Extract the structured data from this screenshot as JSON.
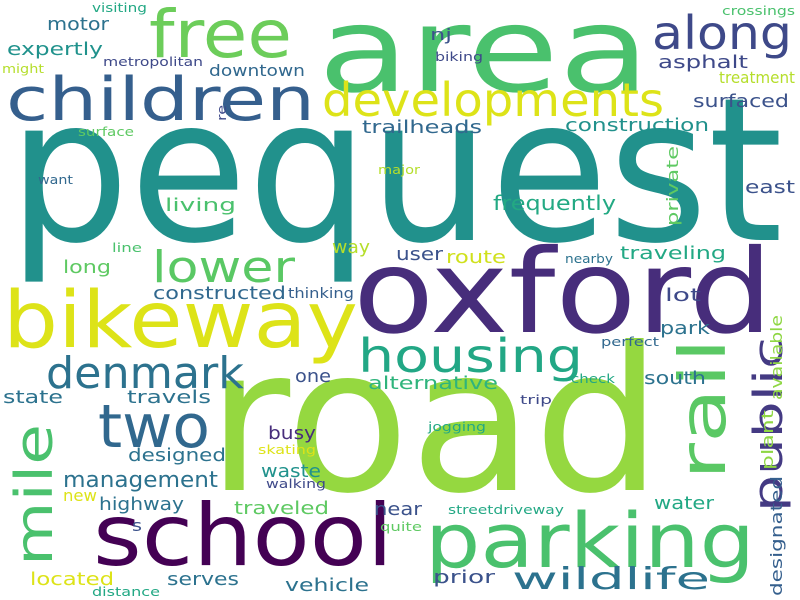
{
  "words": [
    {
      "text": "pequest",
      "color": "#21918c"
    },
    {
      "text": "road",
      "color": "#95d840"
    },
    {
      "text": "area",
      "color": "#4ac16d"
    },
    {
      "text": "oxford",
      "color": "#472d7b"
    },
    {
      "text": "school",
      "color": "#440154"
    },
    {
      "text": "bikeway",
      "color": "#dde318"
    },
    {
      "text": "parking",
      "color": "#4ac16d"
    },
    {
      "text": "children",
      "color": "#355f8d"
    },
    {
      "text": "free",
      "color": "#6ccd5a"
    },
    {
      "text": "developments",
      "color": "#dde318"
    },
    {
      "text": "along",
      "color": "#3e4989"
    },
    {
      "text": "housing",
      "color": "#22a785"
    },
    {
      "text": "rail",
      "color": "#5ac864"
    },
    {
      "text": "denmark",
      "color": "#2c728e"
    },
    {
      "text": "two",
      "color": "#31688e"
    },
    {
      "text": "mile",
      "color": "#4ac16d"
    },
    {
      "text": "lower",
      "color": "#5ac864"
    },
    {
      "text": "public",
      "color": "#443a83"
    },
    {
      "text": "wildlife",
      "color": "#2c728e"
    },
    {
      "text": "management",
      "color": "#2c728e"
    },
    {
      "text": "asphalt",
      "color": "#3e4989"
    },
    {
      "text": "surfaced",
      "color": "#3b528b"
    },
    {
      "text": "treatment",
      "color": "#b5de2b"
    },
    {
      "text": "construction",
      "color": "#21918c"
    },
    {
      "text": "trailheads",
      "color": "#31688e"
    },
    {
      "text": "frequently",
      "color": "#23a983"
    },
    {
      "text": "private",
      "color": "#5ec962"
    },
    {
      "text": "east",
      "color": "#3b528b"
    },
    {
      "text": "living",
      "color": "#4ac16d"
    },
    {
      "text": "traveling",
      "color": "#22a884"
    },
    {
      "text": "route",
      "color": "#d0e11c"
    },
    {
      "text": "user",
      "color": "#3b528b"
    },
    {
      "text": "way",
      "color": "#b5de2b"
    },
    {
      "text": "long",
      "color": "#5ec962"
    },
    {
      "text": "constructed",
      "color": "#31688e"
    },
    {
      "text": "thinking",
      "color": "#355f8d"
    },
    {
      "text": "lot",
      "color": "#3e4989"
    },
    {
      "text": "park",
      "color": "#2c728e"
    },
    {
      "text": "available",
      "color": "#8fd744"
    },
    {
      "text": "alternative",
      "color": "#2fb47c"
    },
    {
      "text": "one",
      "color": "#3b528b"
    },
    {
      "text": "south",
      "color": "#2c728e"
    },
    {
      "text": "state",
      "color": "#2c728e"
    },
    {
      "text": "travels",
      "color": "#2c728e"
    },
    {
      "text": "busy",
      "color": "#472d7b"
    },
    {
      "text": "designed",
      "color": "#2c728e"
    },
    {
      "text": "plant",
      "color": "#8fd744"
    },
    {
      "text": "designated",
      "color": "#355f8d"
    },
    {
      "text": "waste",
      "color": "#20928c"
    },
    {
      "text": "highway",
      "color": "#2c728e"
    },
    {
      "text": "traveled",
      "color": "#5ec962"
    },
    {
      "text": "near",
      "color": "#3b528b"
    },
    {
      "text": "water",
      "color": "#22a884"
    },
    {
      "text": "new",
      "color": "#dde318"
    },
    {
      "text": "located",
      "color": "#dde318"
    },
    {
      "text": "serves",
      "color": "#2c728e"
    },
    {
      "text": "vehicle",
      "color": "#2c728e"
    },
    {
      "text": "prior",
      "color": "#3b528b"
    },
    {
      "text": "motor",
      "color": "#2c728e"
    },
    {
      "text": "expertly",
      "color": "#20928c"
    },
    {
      "text": "metropolitan",
      "color": "#3e4989"
    },
    {
      "text": "downtown",
      "color": "#31688e"
    },
    {
      "text": "nj",
      "color": "#3b528b"
    },
    {
      "text": "biking",
      "color": "#3e4989"
    },
    {
      "text": "visiting",
      "color": "#22a884"
    },
    {
      "text": "crossings",
      "color": "#4ac16d"
    },
    {
      "text": "might",
      "color": "#b5de2b"
    },
    {
      "text": "re",
      "color": "#3e4989"
    },
    {
      "text": "surface",
      "color": "#5ec962"
    },
    {
      "text": "major",
      "color": "#b5de2b"
    },
    {
      "text": "want",
      "color": "#31688e"
    },
    {
      "text": "line",
      "color": "#4ac16d"
    },
    {
      "text": "nearby",
      "color": "#2c728e"
    },
    {
      "text": "perfect",
      "color": "#31688e"
    },
    {
      "text": "check",
      "color": "#22a884"
    },
    {
      "text": "trip",
      "color": "#3e4989"
    },
    {
      "text": "jogging",
      "color": "#22a884"
    },
    {
      "text": "skating",
      "color": "#dde318"
    },
    {
      "text": "walking",
      "color": "#3e4989"
    },
    {
      "text": "streetdriveway",
      "color": "#22a884"
    },
    {
      "text": "quite",
      "color": "#5ec962"
    },
    {
      "text": "s",
      "color": "#3b528b"
    },
    {
      "text": "distance",
      "color": "#22a884"
    }
  ]
}
